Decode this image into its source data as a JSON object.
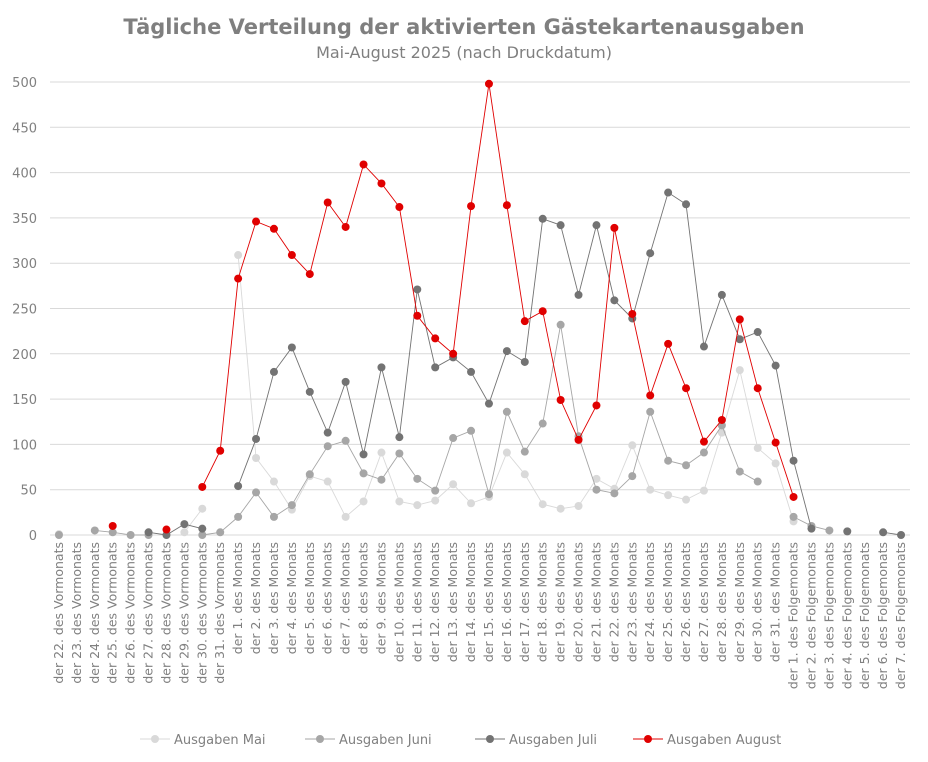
{
  "chart_data": {
    "type": "line",
    "title": "Tägliche Verteilung der aktivierten Gästekartenausgaben",
    "subtitle": "Mai-August 2025 (nach Druckdatum)",
    "xlabel": "",
    "ylabel": "",
    "ylim": [
      0,
      500
    ],
    "yticks": [
      "0",
      "50",
      "100",
      "150",
      "200",
      "250",
      "300",
      "350",
      "400",
      "450",
      "500"
    ],
    "grid": true,
    "legend_position": "bottom",
    "categories": [
      "der 22. des Vormonats",
      "der 23. des Vormonats",
      "der 24. des Vormonats",
      "der 25. des Vormonats",
      "der 26. des Vormonats",
      "der 27. des Vormonats",
      "der 28. des Vormonats",
      "der 29. des Vormonats",
      "der 30. des Vormonats",
      "der 31. des Vormonats",
      "der 1. des Monats",
      "der 2. des Monats",
      "der 3. des Monats",
      "der 4. des Monats",
      "der 5. des Monats",
      "der 6. des Monats",
      "der 7. des Monats",
      "der 8. des Monats",
      "der 9. des Monats",
      "der 10. des Monats",
      "der 11. des Monats",
      "der 12. des Monats",
      "der 13. des Monats",
      "der 14. des Monats",
      "der 15. des Monats",
      "der 16. des Monats",
      "der 17. des Monats",
      "der 18. des Monats",
      "der 19. des Monats",
      "der 20. des Monats",
      "der 21. des Monats",
      "der 22. des Monats",
      "der 23. des Monats",
      "der 24. des Monats",
      "der 25. des Monats",
      "der 26. des Monats",
      "der 27. des Monats",
      "der 28. des Monats",
      "der 29. des Monats",
      "der 30. des Monats",
      "der 31. des Monats",
      "der 1. des Folgemonats",
      "der 2. des Folgemonats",
      "der 3. des Folgemonats",
      "der 4. des Folgemonats",
      "der 5. des Folgemonats",
      "der 6. des Folgemonats",
      "der 7. des Folgemonats"
    ],
    "series": [
      {
        "name": "Ausgaben Mai",
        "color": "#d9d9d9",
        "values": [
          1,
          null,
          null,
          null,
          null,
          null,
          null,
          3,
          29,
          null,
          309,
          85,
          59,
          28,
          65,
          59,
          20,
          37,
          91,
          37,
          33,
          38,
          56,
          35,
          42,
          91,
          67,
          34,
          29,
          32,
          62,
          51,
          99,
          50,
          44,
          39,
          49,
          113,
          182,
          96,
          79,
          15,
          null,
          null,
          null,
          null,
          null,
          null
        ]
      },
      {
        "name": "Ausgaben Juni",
        "color": "#a6a6a6",
        "values": [
          0,
          null,
          5,
          3,
          0,
          0,
          null,
          null,
          0,
          3,
          20,
          47,
          20,
          33,
          67,
          98,
          104,
          68,
          61,
          90,
          62,
          49,
          107,
          115,
          45,
          136,
          92,
          123,
          232,
          109,
          50,
          46,
          65,
          136,
          82,
          77,
          91,
          121,
          70,
          59,
          null,
          20,
          10,
          5,
          null,
          null,
          null,
          null
        ]
      },
      {
        "name": "Ausgaben Juli",
        "color": "#737373",
        "values": [
          null,
          null,
          null,
          null,
          null,
          3,
          0,
          12,
          7,
          null,
          54,
          106,
          180,
          207,
          158,
          113,
          169,
          89,
          185,
          108,
          271,
          185,
          196,
          180,
          145,
          203,
          191,
          349,
          342,
          265,
          342,
          259,
          239,
          311,
          378,
          365,
          208,
          265,
          216,
          224,
          187,
          82,
          7,
          null,
          4,
          null,
          3,
          0
        ]
      },
      {
        "name": "Ausgaben August",
        "color": "#e00000",
        "values": [
          null,
          null,
          null,
          10,
          null,
          null,
          6,
          null,
          53,
          93,
          283,
          346,
          338,
          309,
          288,
          367,
          340,
          409,
          388,
          362,
          242,
          217,
          200,
          363,
          498,
          364,
          236,
          247,
          149,
          105,
          143,
          339,
          244,
          154,
          211,
          162,
          103,
          127,
          238,
          162,
          102,
          42,
          null,
          null,
          null,
          null,
          null,
          null
        ]
      }
    ]
  }
}
